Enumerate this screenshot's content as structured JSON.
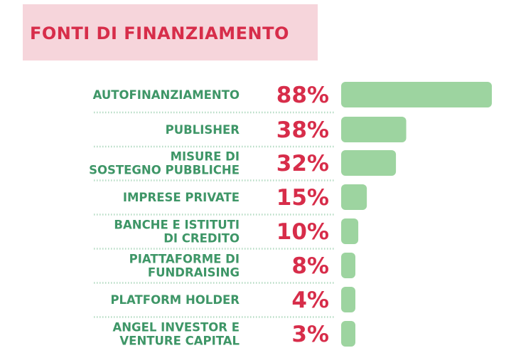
{
  "colors": {
    "title": "#d72d4a",
    "title_bg": "#f6d5db",
    "label": "#3e9667",
    "value": "#d72d4a",
    "bar": "#9dd4a0",
    "separator": "#b6dcc4"
  },
  "chart_data": {
    "type": "bar",
    "orientation": "horizontal",
    "title": "FONTI DI FINANZIAMENTO",
    "categories": [
      [
        "AUTOFINANZIAMENTO"
      ],
      [
        "PUBLISHER"
      ],
      [
        "MISURE DI",
        "SOSTEGNO PUBBLICHE"
      ],
      [
        "IMPRESE PRIVATE"
      ],
      [
        "BANCHE E ISTITUTI",
        "DI CREDITO"
      ],
      [
        "PIATTAFORME DI",
        "FUNDRAISING"
      ],
      [
        "PLATFORM HOLDER"
      ],
      [
        "ANGEL INVESTOR E",
        "VENTURE CAPITAL"
      ]
    ],
    "values": [
      88,
      38,
      32,
      15,
      10,
      8,
      4,
      3
    ],
    "value_labels": [
      "88%",
      "38%",
      "32%",
      "15%",
      "10%",
      "8%",
      "4%",
      "3%"
    ],
    "unit": "%",
    "grid": false,
    "legend": "none"
  }
}
